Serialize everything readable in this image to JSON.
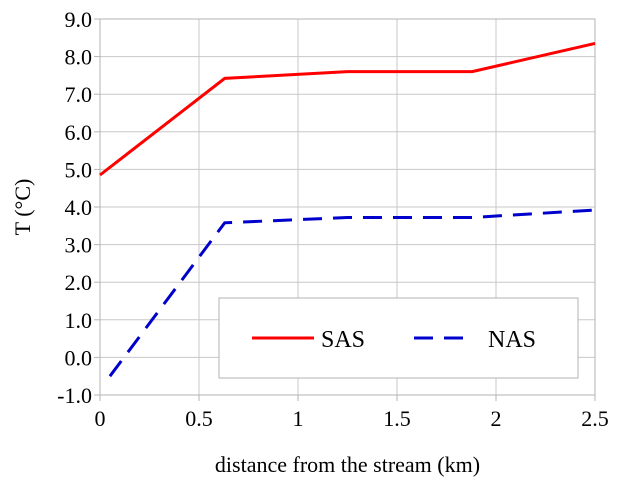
{
  "chart_data": {
    "type": "line",
    "title": "",
    "xlabel": "distance from the stream (km)",
    "ylabel": "T (°C)",
    "xlim": [
      0,
      2.5
    ],
    "ylim": [
      -1.0,
      9.0
    ],
    "x_ticks": [
      "0",
      "0.5",
      "1",
      "1.5",
      "2",
      "2.5"
    ],
    "y_ticks": [
      "-1.0",
      "0.0",
      "1.0",
      "2.0",
      "3.0",
      "4.0",
      "5.0",
      "6.0",
      "7.0",
      "8.0",
      "9.0"
    ],
    "grid": {
      "x": true,
      "y": true,
      "color": "#c8c8c8"
    },
    "legend_position": "bottom-right",
    "series": [
      {
        "name": "SAS",
        "color": "#ff0000",
        "style": "solid",
        "x": [
          0,
          0.63,
          1.25,
          1.88,
          2.5
        ],
        "y": [
          4.85,
          7.42,
          7.6,
          7.6,
          8.35
        ]
      },
      {
        "name": "NAS",
        "color": "#0000cc",
        "style": "dashed",
        "x": [
          0.05,
          0.63,
          1.25,
          1.88,
          2.5
        ],
        "y": [
          -0.5,
          3.58,
          3.72,
          3.72,
          3.92
        ]
      }
    ]
  }
}
